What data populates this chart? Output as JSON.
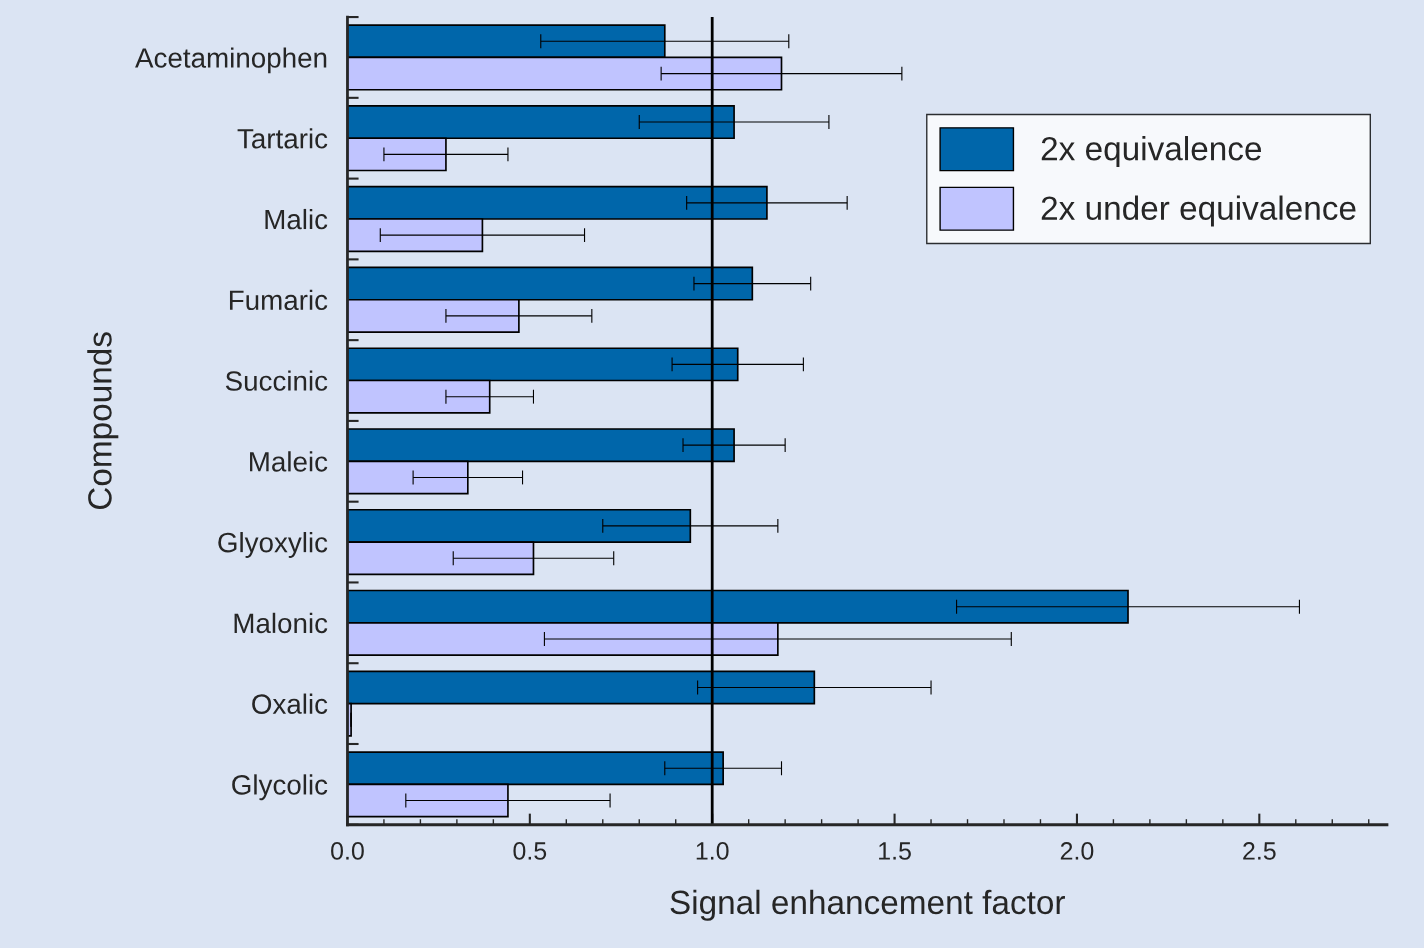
{
  "chart_data": {
    "type": "bar",
    "orientation": "horizontal",
    "xlabel": "Signal enhancement factor",
    "ylabel": "Compounds",
    "categories": [
      "Acetaminophen",
      "Tartaric",
      "Malic",
      "Fumaric",
      "Succinic",
      "Maleic",
      "Glyoxylic",
      "Malonic",
      "Oxalic",
      "Glycolic"
    ],
    "series": [
      {
        "name": "2x equivalence",
        "color": "#0066aa",
        "values": [
          0.87,
          1.06,
          1.15,
          1.11,
          1.07,
          1.06,
          0.94,
          2.14,
          1.28,
          1.03
        ],
        "errors": [
          0.34,
          0.26,
          0.22,
          0.16,
          0.18,
          0.14,
          0.24,
          0.47,
          0.32,
          0.16
        ]
      },
      {
        "name": "2x under equivalence",
        "color": "#c0c4ff",
        "values": [
          1.19,
          0.27,
          0.37,
          0.47,
          0.39,
          0.33,
          0.51,
          1.18,
          0.01,
          0.44
        ],
        "errors": [
          0.33,
          0.17,
          0.28,
          0.2,
          0.12,
          0.15,
          0.22,
          0.64,
          null,
          0.28
        ]
      }
    ],
    "xlim": [
      0,
      2.85
    ],
    "xticks": [
      {
        "value": 0,
        "label": "0.0"
      },
      0.5,
      {
        "value": 1,
        "label": "1.0"
      },
      1.5,
      {
        "value": 2,
        "label": "2.0"
      },
      2.5
    ],
    "ref_lines": [
      {
        "axis": "x",
        "value": 1,
        "color": "#000000"
      }
    ],
    "legend": "top right",
    "grid": false
  }
}
